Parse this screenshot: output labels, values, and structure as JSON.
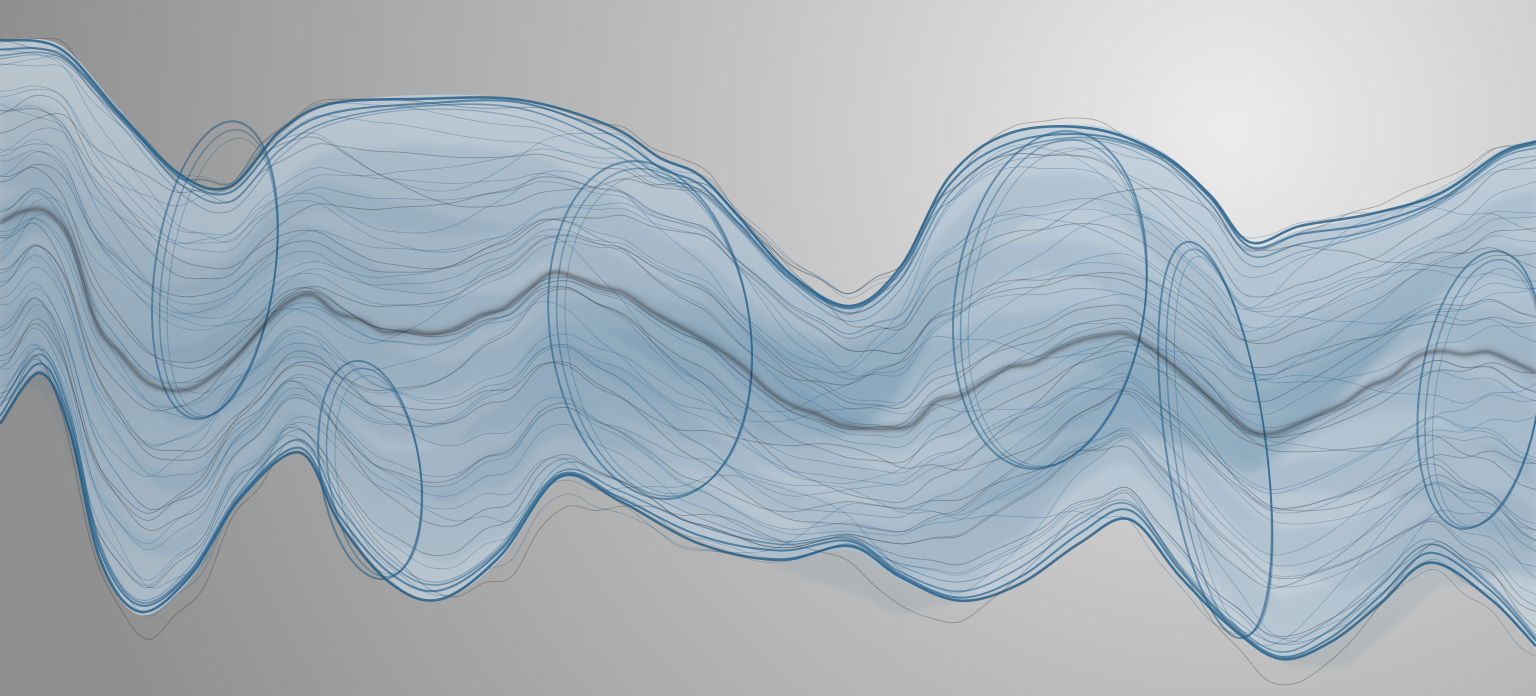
{
  "scene": {
    "subject": "flowing-translucent-ribbon",
    "colors": {
      "background_highlight": "#ececec",
      "background_mid": "#bdbdbd",
      "background_shadow": "#8e8e8e",
      "ribbon_edge": "#1f5a85",
      "ribbon_fill": "#9fb8cc",
      "ribbon_fill_light": "#c9d6e0",
      "ribbon_core": "#1a1a1a"
    }
  }
}
